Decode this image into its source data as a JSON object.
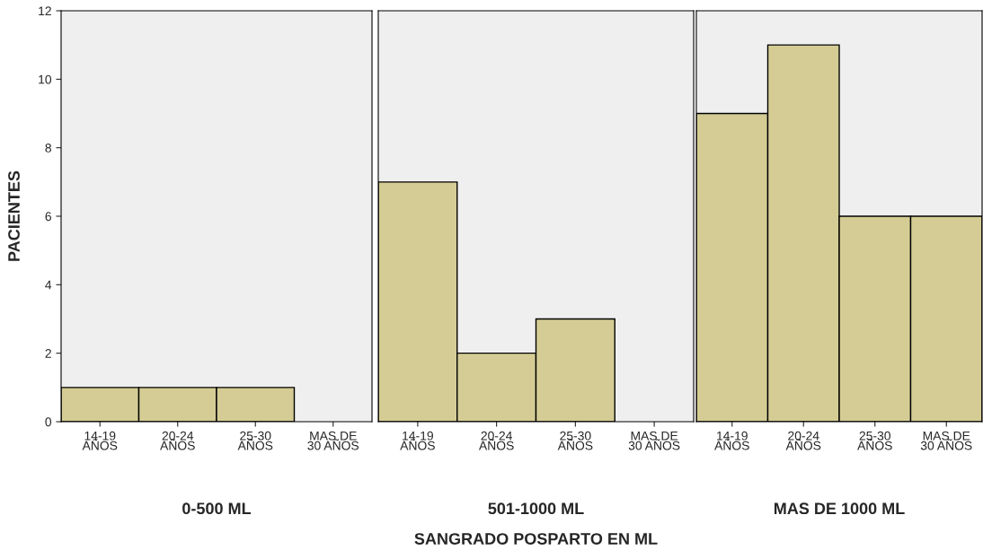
{
  "chart_data": [
    {
      "type": "bar",
      "categories": [
        "14-19\nAÑOS",
        "20-24\nAÑOS",
        "25-30\nAÑOS",
        "MAS DE\n30 AÑOS"
      ],
      "values": [
        1,
        1,
        1,
        0
      ],
      "color": "#d4cc94",
      "ylim": [
        0,
        12
      ],
      "yticks": [
        0,
        2,
        4,
        6,
        8,
        10,
        12
      ],
      "xlabel": "0-500 ML",
      "ylabel": "PACIENTES",
      "grid": false,
      "legend": false
    },
    {
      "type": "bar",
      "categories": [
        "14-19\nAÑOS",
        "20-24\nAÑOS",
        "25-30\nAÑOS",
        "MAS DE\n30 AÑOS"
      ],
      "values": [
        7,
        2,
        3,
        0
      ],
      "color": "#d4cc94",
      "ylim": [
        0,
        12
      ],
      "yticks": [
        0,
        2,
        4,
        6,
        8,
        10,
        12
      ],
      "tick_labels": "x",
      "xlabel": "501-1000 ML",
      "annotations": [
        "SANGRADO POSPARTO EN ML"
      ],
      "grid": false,
      "legend": false
    },
    {
      "type": "bar",
      "categories": [
        "14-19\nAÑOS",
        "20-24\nAÑOS",
        "25-30\nAÑOS",
        "MAS DE\n30 AÑOS"
      ],
      "values": [
        9,
        11,
        6,
        6
      ],
      "color": "#d4cc94",
      "ylim": [
        0,
        12
      ],
      "yticks": [
        0,
        2,
        4,
        6,
        8,
        10,
        12
      ],
      "tick_labels": "x",
      "xlabel": "MAS DE 1000 ML",
      "grid": false,
      "legend": false
    }
  ]
}
